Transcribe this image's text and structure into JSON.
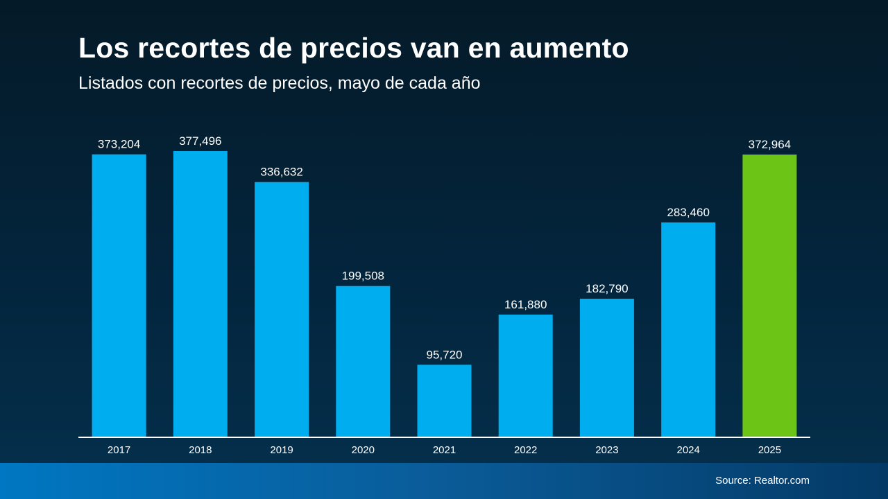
{
  "chart_data": {
    "type": "bar",
    "title": "Los recortes de precios van en aumento",
    "subtitle": "Listados con recortes de precios, mayo de cada año",
    "categories": [
      "2017",
      "2018",
      "2019",
      "2020",
      "2021",
      "2022",
      "2023",
      "2024",
      "2025"
    ],
    "values": [
      373204,
      377496,
      336632,
      199508,
      95720,
      161880,
      182790,
      283460,
      372964
    ],
    "value_labels": [
      "373,204",
      "377,496",
      "336,632",
      "199,508",
      "95,720",
      "161,880",
      "182,790",
      "283,460",
      "372,964"
    ],
    "ylim": [
      0,
      377496
    ],
    "grid": false,
    "legend": "none",
    "colors": {
      "default_bar": "#00aeef",
      "highlight_bar": "#6cc417",
      "axis_line": "#ffffff",
      "text": "#ffffff"
    },
    "highlight_category": "2025"
  },
  "footer": {
    "source": "Source: Realtor.com"
  }
}
